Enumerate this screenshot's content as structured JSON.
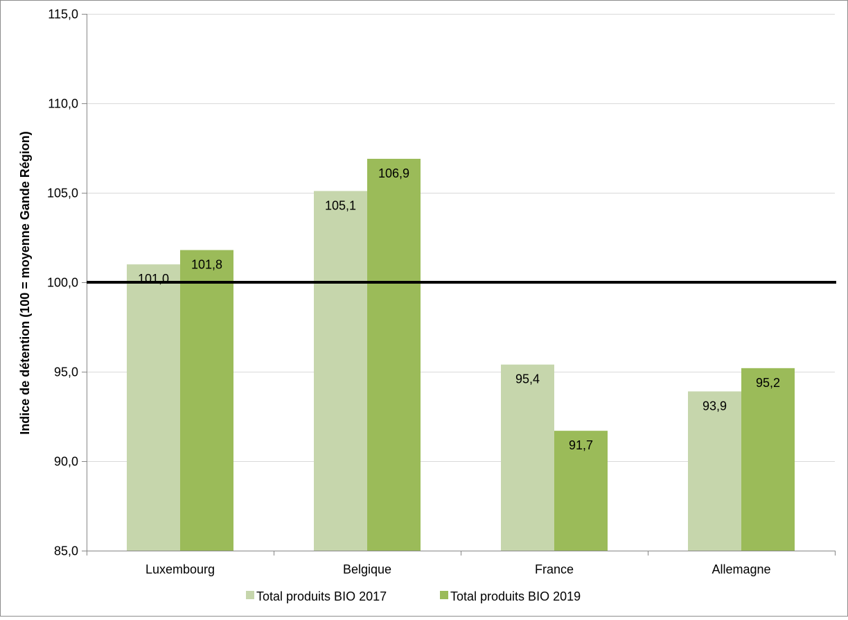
{
  "chart_data": {
    "type": "bar",
    "title": "",
    "xlabel": "",
    "ylabel": "Indice de détention (100 = moyenne Gande Région)",
    "ylim": [
      85,
      115
    ],
    "yticks": [
      "85,0",
      "90,0",
      "95,0",
      "100,0",
      "105,0",
      "110,0",
      "115,0"
    ],
    "ytick_values": [
      85,
      90,
      95,
      100,
      105,
      110,
      115
    ],
    "categories": [
      "Luxembourg",
      "Belgique",
      "France",
      "Allemagne"
    ],
    "series": [
      {
        "name": "Total produits BIO 2017",
        "color": "#c6d6ac",
        "values": [
          101.0,
          105.1,
          95.4,
          93.9
        ],
        "labels": [
          "101,0",
          "105,1",
          "95,4",
          "93,9"
        ]
      },
      {
        "name": "Total produits BIO 2019",
        "color": "#9bbb59",
        "values": [
          101.8,
          106.9,
          91.7,
          95.2
        ],
        "labels": [
          "101,8",
          "106,9",
          "91,7",
          "95,2"
        ]
      }
    ],
    "reference_line": {
      "value": 100,
      "color": "#000000"
    },
    "grid": true,
    "legend_position": "bottom"
  }
}
